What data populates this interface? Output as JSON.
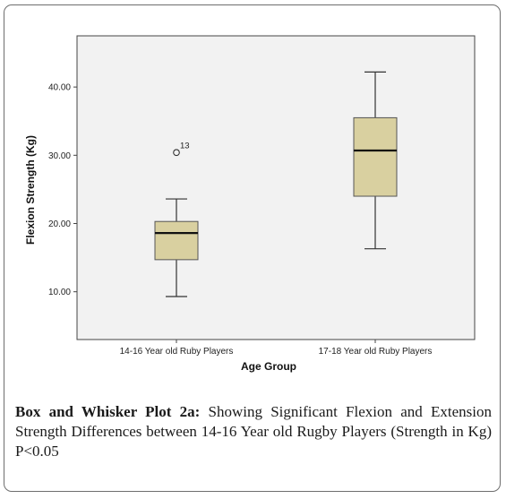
{
  "caption": {
    "lead": "Box and Whisker Plot 2a:",
    "body": " Showing Significant Flexion and Extension Strength Differences between 14-16 Year old Rugby Players (Strength in Kg) P<0.05"
  },
  "colors": {
    "box_fill": "#d9d0a0",
    "plot_bg": "#f2f2f2",
    "line": "#333333"
  },
  "chart_data": {
    "type": "box",
    "title": "",
    "xlabel": "Age Group",
    "ylabel": "Flexion Strength (Kg)",
    "ylim": [
      3.0,
      47.5
    ],
    "y_ticks": [
      10.0,
      20.0,
      30.0,
      40.0
    ],
    "y_tick_labels": [
      "10.00",
      "20.00",
      "30.00",
      "40.00"
    ],
    "grid": false,
    "categories": [
      "14-16 Year old Ruby Players",
      "17-18 Year old Ruby Players"
    ],
    "series": [
      {
        "category": "14-16 Year old Ruby Players",
        "min": 9.3,
        "q1": 14.7,
        "median": 18.6,
        "q3": 20.3,
        "max": 23.6,
        "outliers": [
          {
            "value": 30.4,
            "label": "13"
          }
        ]
      },
      {
        "category": "17-18 Year old Ruby Players",
        "min": 16.3,
        "q1": 24.0,
        "median": 30.7,
        "q3": 35.5,
        "max": 42.2,
        "outliers": []
      }
    ]
  }
}
